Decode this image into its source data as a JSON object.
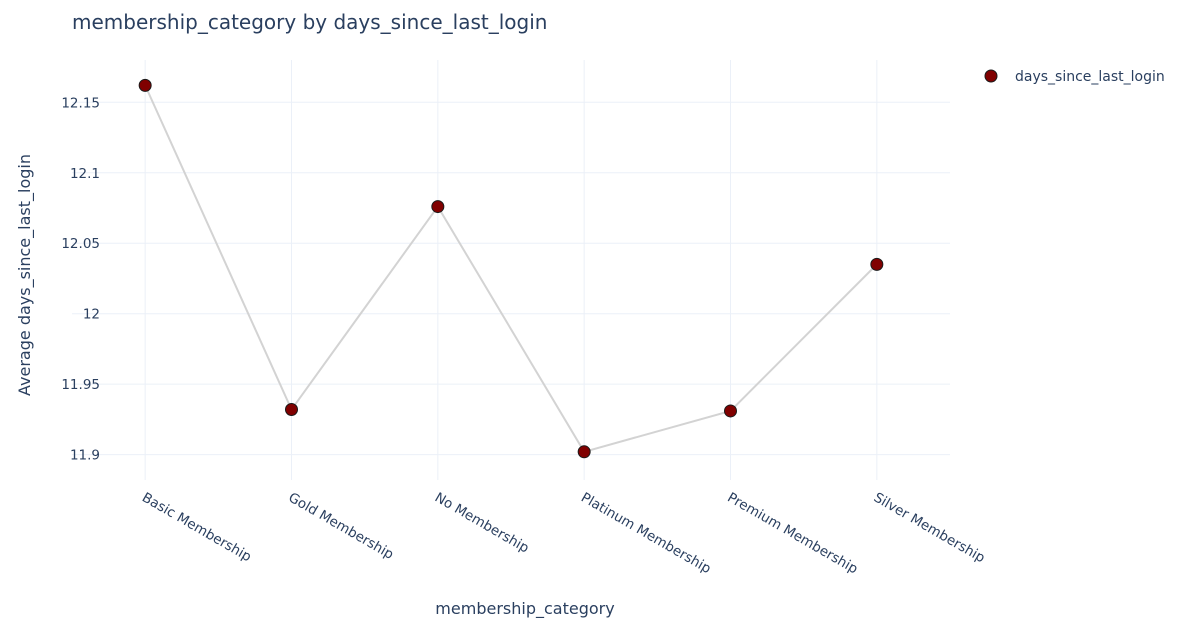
{
  "chart_data": {
    "type": "line",
    "title": "membership_category by days_since_last_login",
    "xlabel": "membership_category",
    "ylabel": "Average days_since_last_login",
    "categories": [
      "Basic Membership",
      "Gold Membership",
      "No Membership",
      "Platinum Membership",
      "Premium Membership",
      "Silver Membership"
    ],
    "series": [
      {
        "name": "days_since_last_login",
        "values": [
          12.162,
          11.932,
          12.076,
          11.902,
          11.931,
          12.035
        ],
        "marker_color": "#800000",
        "line_color": "#d3d3d3"
      }
    ],
    "ylim": [
      11.882,
      12.18
    ],
    "yticks": [
      11.9,
      11.95,
      12,
      12.05,
      12.1,
      12.15
    ],
    "ytick_labels": [
      "11.9",
      "11.95",
      "12",
      "12.05",
      "12.1",
      "12.15"
    ],
    "grid": true,
    "legend_position": "top-right"
  }
}
